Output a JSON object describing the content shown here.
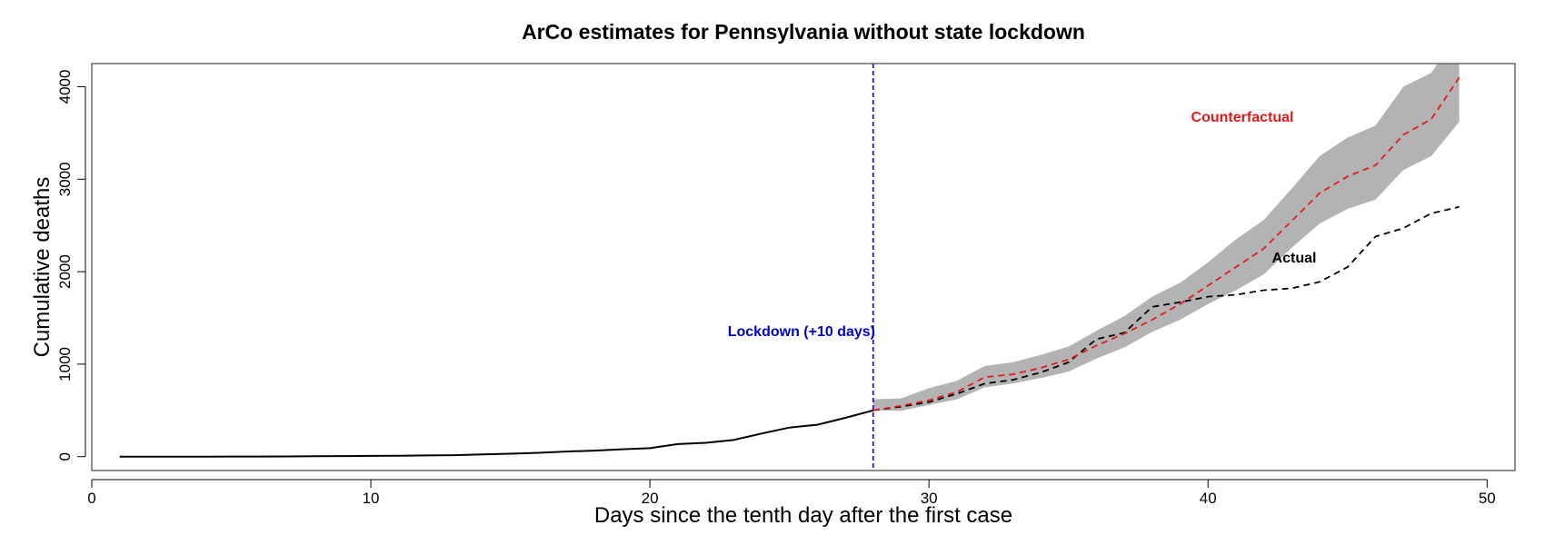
{
  "chart_data": {
    "type": "line",
    "title": "ArCo estimates for Pennsylvania without state lockdown",
    "xlabel": "Days since the tenth day after the first case",
    "ylabel": "Cumulative deaths",
    "xlim": [
      0,
      51
    ],
    "ylim": [
      -150,
      4250
    ],
    "xticks": [
      0,
      10,
      20,
      30,
      40,
      50
    ],
    "yticks": [
      0,
      1000,
      2000,
      3000,
      4000
    ],
    "grid": false,
    "lockdown_x": 28,
    "series": [
      {
        "name": "Actual",
        "color": "#000000",
        "x": [
          1,
          2,
          3,
          4,
          5,
          6,
          7,
          8,
          9,
          10,
          11,
          12,
          13,
          14,
          15,
          16,
          17,
          18,
          19,
          20,
          21,
          22,
          23,
          24,
          25,
          26,
          27,
          28,
          29,
          30,
          31,
          32,
          33,
          34,
          35,
          36,
          37,
          38,
          39,
          40,
          41,
          42,
          43,
          44,
          45,
          46,
          47,
          48,
          49
        ],
        "values": [
          0,
          0,
          0,
          0,
          1,
          1,
          2,
          4,
          6,
          8,
          10,
          13,
          16,
          24,
          32,
          42,
          55,
          65,
          80,
          92,
          136,
          150,
          180,
          250,
          315,
          345,
          420,
          500,
          540,
          590,
          680,
          790,
          830,
          910,
          1020,
          1270,
          1340,
          1620,
          1670,
          1730,
          1750,
          1800,
          1820,
          1890,
          2050,
          2380,
          2470,
          2630,
          2700
        ]
      },
      {
        "name": "Counterfactual",
        "color": "#e31a1c",
        "x": [
          28,
          29,
          30,
          31,
          32,
          33,
          34,
          35,
          36,
          37,
          38,
          39,
          40,
          41,
          42,
          43,
          44,
          45,
          46,
          47,
          48,
          49
        ],
        "values": [
          500,
          550,
          610,
          700,
          860,
          890,
          960,
          1050,
          1200,
          1330,
          1480,
          1650,
          1850,
          2050,
          2250,
          2550,
          2850,
          3030,
          3150,
          3480,
          3650,
          4100
        ],
        "band_upper": [
          620,
          630,
          740,
          820,
          980,
          1020,
          1100,
          1190,
          1360,
          1520,
          1730,
          1880,
          2100,
          2350,
          2560,
          2900,
          3250,
          3450,
          3580,
          4000,
          4150,
          4600
        ],
        "band_lower": [
          500,
          495,
          560,
          620,
          750,
          790,
          850,
          920,
          1060,
          1180,
          1350,
          1480,
          1650,
          1800,
          1970,
          2260,
          2520,
          2680,
          2780,
          3100,
          3250,
          3620
        ]
      }
    ],
    "annotations": {
      "lockdown": "Lockdown (+10 days)",
      "counterfactual": "Counterfactual",
      "actual": "Actual"
    },
    "colors": {
      "band": "#b3b3b3",
      "lockdown_line": "#1a1ab0",
      "lockdown_text": "#0000cc",
      "counterfactual_text": "#e31a1c",
      "actual_text": "#000000"
    }
  }
}
